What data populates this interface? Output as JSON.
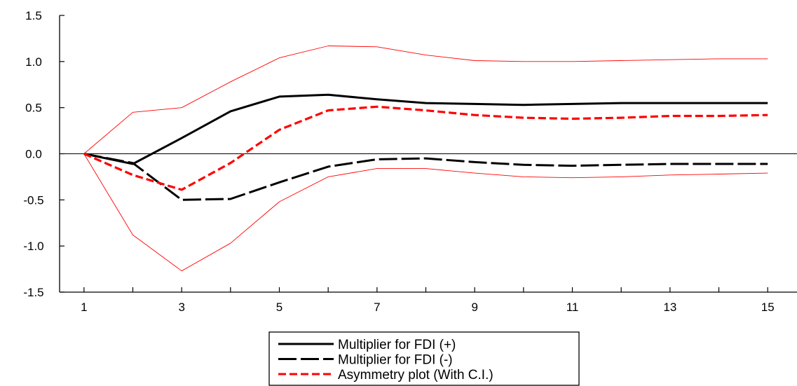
{
  "chart_data": {
    "type": "line",
    "x": [
      1,
      2,
      3,
      4,
      5,
      6,
      7,
      8,
      9,
      10,
      11,
      12,
      13,
      14,
      15
    ],
    "xticks": [
      "1",
      "3",
      "5",
      "7",
      "9",
      "11",
      "13",
      "15"
    ],
    "yticks": [
      "1.5",
      "1.0",
      "0.5",
      "0.0",
      "-0.5",
      "-1.0",
      "-1.5"
    ],
    "ylim": [
      -1.5,
      1.5
    ],
    "xlim": [
      0.5,
      15.6
    ],
    "zero_line": true,
    "series": [
      {
        "name": "Multiplier for FDI (+)",
        "color": "#000000",
        "style": "solid",
        "values": [
          0.0,
          -0.11,
          0.17,
          0.46,
          0.62,
          0.64,
          0.59,
          0.55,
          0.54,
          0.53,
          0.54,
          0.55,
          0.55,
          0.55,
          0.55
        ]
      },
      {
        "name": "Multiplier for FDI (-)",
        "color": "#000000",
        "style": "long-dash",
        "values": [
          0.0,
          -0.1,
          -0.5,
          -0.49,
          -0.31,
          -0.14,
          -0.06,
          -0.05,
          -0.09,
          -0.12,
          -0.13,
          -0.12,
          -0.11,
          -0.11,
          -0.11
        ]
      },
      {
        "name": "Asymmetry plot (With C.I.)",
        "color": "#ff0000",
        "style": "dash",
        "values": [
          0.0,
          -0.23,
          -0.39,
          -0.1,
          0.26,
          0.47,
          0.51,
          0.47,
          0.42,
          0.39,
          0.38,
          0.39,
          0.41,
          0.41,
          0.42
        ]
      },
      {
        "role": "ci-upper",
        "color": "#ff0000",
        "style": "thin",
        "values": [
          0.0,
          0.45,
          0.5,
          0.78,
          1.04,
          1.17,
          1.16,
          1.07,
          1.01,
          1.0,
          1.0,
          1.01,
          1.02,
          1.03,
          1.03
        ]
      },
      {
        "role": "ci-lower",
        "color": "#ff0000",
        "style": "thin",
        "values": [
          0.0,
          -0.88,
          -1.27,
          -0.97,
          -0.52,
          -0.25,
          -0.16,
          -0.16,
          -0.21,
          -0.25,
          -0.26,
          -0.25,
          -0.23,
          -0.22,
          -0.21
        ]
      }
    ],
    "legend": {
      "position": "bottom-center",
      "entries": [
        {
          "label": "Multiplier for FDI (+)",
          "color": "#000000",
          "style": "solid"
        },
        {
          "label": "Multiplier for FDI (-)",
          "color": "#000000",
          "style": "long-dash"
        },
        {
          "label": "Asymmetry plot (With C.I.)",
          "color": "#ff0000",
          "style": "dash"
        }
      ]
    }
  }
}
